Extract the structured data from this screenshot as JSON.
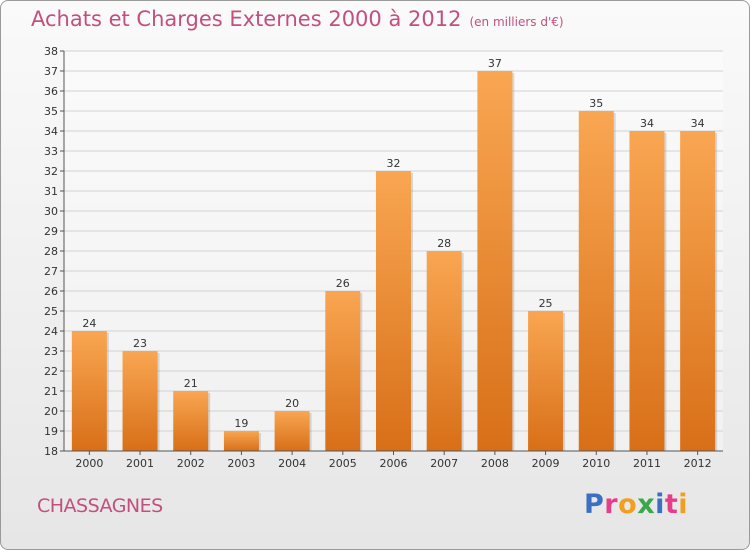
{
  "title": "Achats et Charges Externes 2000 à 2012",
  "subtitle": "(en milliers d'€)",
  "commune": "CHASSAGNES",
  "logo": {
    "text": "Proxiti",
    "colors": [
      "#3a6fc4",
      "#e63c8c",
      "#f0a020",
      "#39a84a",
      "#3a6fc4",
      "#e63c8c",
      "#f0a020"
    ]
  },
  "chart_data": {
    "type": "bar",
    "categories": [
      "2000",
      "2001",
      "2002",
      "2003",
      "2004",
      "2005",
      "2006",
      "2007",
      "2008",
      "2009",
      "2010",
      "2011",
      "2012"
    ],
    "values": [
      24,
      23,
      21,
      19,
      20,
      26,
      32,
      28,
      37,
      25,
      35,
      34,
      34
    ],
    "title": "Achats et Charges Externes 2000 à 2012",
    "ylim": [
      18,
      38
    ],
    "yticks": [
      18,
      19,
      20,
      21,
      22,
      23,
      24,
      25,
      26,
      27,
      28,
      29,
      30,
      31,
      32,
      33,
      34,
      35,
      36,
      37,
      38
    ],
    "grid": true,
    "bar_color": "#f0922c"
  }
}
